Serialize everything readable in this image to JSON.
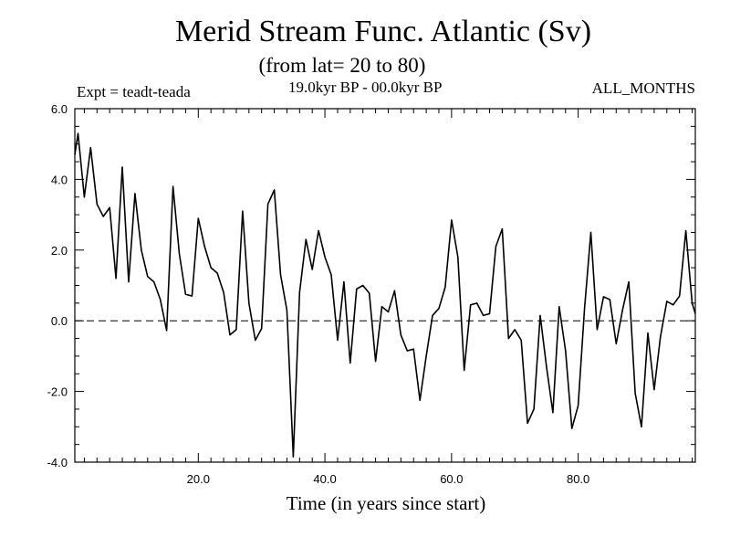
{
  "chart_data": {
    "type": "line",
    "title": "Merid Stream Func. Atlantic (Sv)",
    "subtitle": "(from lat= 20 to 80)",
    "left_label": "Expt = teadt-teada",
    "center_label": "19.0kyr BP - 00.0kyr BP",
    "right_label": "ALL_MONTHS",
    "xlabel": "Time (in years since start)",
    "ylabel": "",
    "xlim": [
      0.5,
      98.5
    ],
    "ylim": [
      -4.0,
      6.0
    ],
    "xticks": [
      20,
      40,
      60,
      80
    ],
    "xtick_labels": [
      "20.0",
      "40.0",
      "60.0",
      "80.0"
    ],
    "yticks": [
      -4,
      -2,
      0,
      2,
      4,
      6
    ],
    "ytick_labels": [
      "-4.0",
      "-2.0",
      "0.0",
      "2.0",
      "4.0",
      "6.0"
    ],
    "zero_line": true,
    "series": [
      {
        "name": "Merid Stream Func. Atlantic",
        "x": [
          0.5,
          1,
          2,
          3,
          4,
          5,
          6,
          7,
          8,
          9,
          10,
          11,
          12,
          13,
          14,
          15,
          16,
          17,
          18,
          19,
          20,
          21,
          22,
          23,
          24,
          25,
          26,
          27,
          28,
          29,
          30,
          31,
          32,
          33,
          34,
          35,
          36,
          37,
          38,
          39,
          40,
          41,
          42,
          43,
          44,
          45,
          46,
          47,
          48,
          49,
          50,
          51,
          52,
          53,
          54,
          55,
          56,
          57,
          58,
          59,
          60,
          61,
          62,
          63,
          64,
          65,
          66,
          67,
          68,
          69,
          70,
          71,
          72,
          73,
          74,
          75,
          76,
          77,
          78,
          79,
          80,
          81,
          82,
          83,
          84,
          85,
          86,
          87,
          88,
          89,
          90,
          91,
          92,
          93,
          94,
          95,
          96,
          97,
          98,
          98.5
        ],
        "values": [
          4.7,
          5.3,
          3.5,
          4.9,
          3.3,
          2.95,
          3.2,
          1.2,
          4.35,
          1.1,
          3.6,
          2.0,
          1.25,
          1.1,
          0.6,
          -0.28,
          3.8,
          1.9,
          0.75,
          0.7,
          2.9,
          2.1,
          1.5,
          1.35,
          0.8,
          -0.4,
          -0.25,
          3.1,
          0.5,
          -0.55,
          -0.22,
          3.3,
          3.7,
          1.3,
          0.3,
          -3.85,
          0.8,
          2.3,
          1.45,
          2.55,
          1.8,
          1.3,
          -0.55,
          1.1,
          -1.2,
          0.9,
          1.0,
          0.78,
          -1.15,
          0.4,
          0.25,
          0.85,
          -0.4,
          -0.85,
          -0.8,
          -2.25,
          -1.0,
          0.15,
          0.35,
          0.95,
          2.85,
          1.8,
          -1.4,
          0.45,
          0.5,
          0.15,
          0.2,
          2.1,
          2.6,
          -0.5,
          -0.25,
          -0.55,
          -2.9,
          -2.5,
          0.15,
          -1.3,
          -2.6,
          0.4,
          -0.85,
          -3.05,
          -2.4,
          0.35,
          2.5,
          -0.25,
          0.68,
          0.6,
          -0.65,
          0.3,
          1.1,
          -2.05,
          -3.0,
          -0.35,
          -1.95,
          -0.45,
          0.55,
          0.45,
          0.7,
          2.55,
          0.5,
          0.2
        ]
      }
    ]
  }
}
